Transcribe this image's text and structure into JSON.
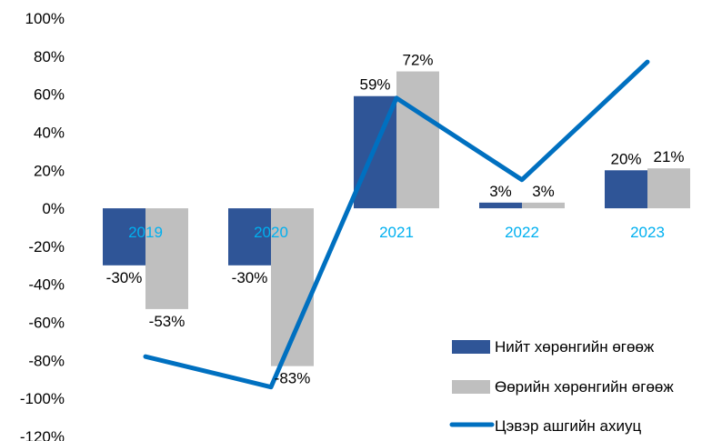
{
  "chart_data": {
    "type": "bar",
    "categories": [
      "2019",
      "2020",
      "2021",
      "2022",
      "2023"
    ],
    "series": [
      {
        "name": "Нийт хөрөнгийн өгөөж",
        "type": "bar",
        "color": "#2f5597",
        "values": [
          -30,
          -30,
          59,
          3,
          20
        ],
        "labels": [
          "-30%",
          "-30%",
          "59%",
          "3%",
          "20%"
        ]
      },
      {
        "name": "Өөрийн хөрөнгийн өгөөж",
        "type": "bar",
        "color": "#bfbfbf",
        "values": [
          -53,
          -83,
          72,
          3,
          21
        ],
        "labels": [
          "-53%",
          "-83%",
          "72%",
          "3%",
          "21%"
        ]
      },
      {
        "name": "Цэвэр ашгийн ахиуц",
        "type": "line",
        "color": "#0070c0",
        "values": [
          -78,
          -94,
          58,
          15,
          77
        ]
      }
    ],
    "ylim": [
      -120,
      100
    ],
    "yticks": [
      "100%",
      "80%",
      "60%",
      "40%",
      "20%",
      "0%",
      "-20%",
      "-40%",
      "-60%",
      "-80%",
      "-100%",
      "-120%"
    ],
    "category_label_color": "#00b0f0",
    "grid": false,
    "legend_position": "bottom-right"
  }
}
